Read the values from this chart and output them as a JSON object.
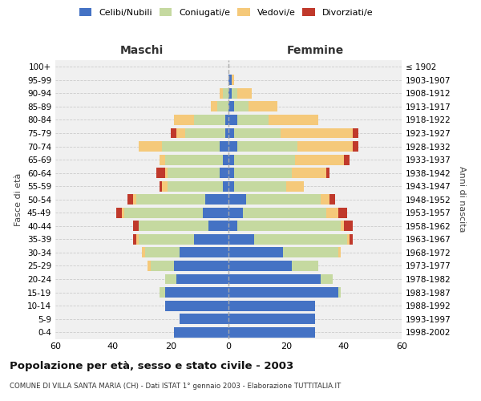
{
  "age_groups": [
    "0-4",
    "5-9",
    "10-14",
    "15-19",
    "20-24",
    "25-29",
    "30-34",
    "35-39",
    "40-44",
    "45-49",
    "50-54",
    "55-59",
    "60-64",
    "65-69",
    "70-74",
    "75-79",
    "80-84",
    "85-89",
    "90-94",
    "95-99",
    "100+"
  ],
  "birth_years": [
    "1998-2002",
    "1993-1997",
    "1988-1992",
    "1983-1987",
    "1978-1982",
    "1973-1977",
    "1968-1972",
    "1963-1967",
    "1958-1962",
    "1953-1957",
    "1948-1952",
    "1943-1947",
    "1938-1942",
    "1933-1937",
    "1928-1932",
    "1923-1927",
    "1918-1922",
    "1913-1917",
    "1908-1912",
    "1903-1907",
    "≤ 1902"
  ],
  "colors": {
    "celibi": "#4472C4",
    "coniugati": "#C5D9A0",
    "vedovi": "#F5C97A",
    "divorziati": "#C0392B"
  },
  "maschi": {
    "celibi": [
      19,
      17,
      22,
      22,
      18,
      19,
      17,
      12,
      7,
      9,
      8,
      2,
      3,
      2,
      3,
      1,
      1,
      0,
      0,
      0,
      0
    ],
    "coniugati": [
      0,
      0,
      0,
      2,
      4,
      8,
      12,
      19,
      24,
      27,
      24,
      19,
      18,
      20,
      20,
      14,
      11,
      4,
      2,
      0,
      0
    ],
    "vedovi": [
      0,
      0,
      0,
      0,
      0,
      1,
      1,
      1,
      0,
      1,
      1,
      2,
      1,
      2,
      8,
      3,
      7,
      2,
      1,
      0,
      0
    ],
    "divorziati": [
      0,
      0,
      0,
      0,
      0,
      0,
      0,
      1,
      2,
      2,
      2,
      1,
      3,
      0,
      0,
      2,
      0,
      0,
      0,
      0,
      0
    ]
  },
  "femmine": {
    "celibi": [
      30,
      30,
      30,
      38,
      32,
      22,
      19,
      9,
      3,
      5,
      6,
      2,
      2,
      2,
      3,
      2,
      3,
      2,
      1,
      1,
      0
    ],
    "coniugati": [
      0,
      0,
      0,
      1,
      4,
      9,
      19,
      32,
      36,
      29,
      26,
      18,
      20,
      21,
      21,
      16,
      11,
      5,
      2,
      0,
      0
    ],
    "vedovi": [
      0,
      0,
      0,
      0,
      0,
      0,
      1,
      1,
      1,
      4,
      3,
      6,
      12,
      17,
      19,
      25,
      17,
      10,
      5,
      1,
      0
    ],
    "divorziati": [
      0,
      0,
      0,
      0,
      0,
      0,
      0,
      1,
      3,
      3,
      2,
      0,
      1,
      2,
      2,
      2,
      0,
      0,
      0,
      0,
      0
    ]
  },
  "title": "Popolazione per età, sesso e stato civile - 2003",
  "subtitle": "COMUNE DI VILLA SANTA MARIA (CH) - Dati ISTAT 1° gennaio 2003 - Elaborazione TUTTITALIA.IT",
  "xlabel_left": "Maschi",
  "xlabel_right": "Femmine",
  "ylabel_left": "Fasce di età",
  "ylabel_right": "Anni di nascita",
  "xlim": 60,
  "legend_labels": [
    "Celibi/Nubili",
    "Coniugati/e",
    "Vedovi/e",
    "Divorziati/e"
  ],
  "bg_color": "#f0f0f0"
}
